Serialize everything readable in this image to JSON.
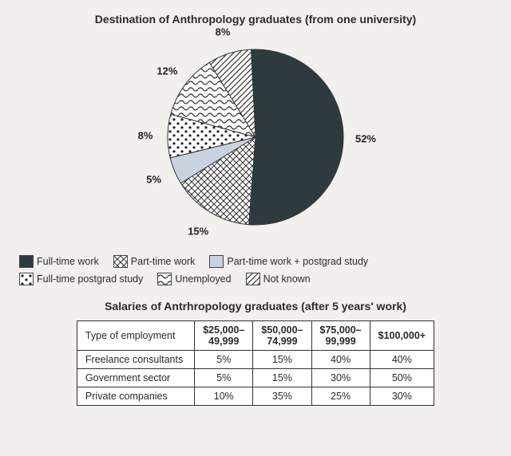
{
  "pie": {
    "title": "Destination of Anthropology graduates (from one university)",
    "type": "pie",
    "background_color": "#f2f0ec",
    "radius": 110,
    "stroke_color": "#333333",
    "slices": [
      {
        "label": "Full-time work",
        "value": 52,
        "display": "52%",
        "pattern": "solid",
        "fill": "#2f3a3f"
      },
      {
        "label": "Part-time work",
        "value": 15,
        "display": "15%",
        "pattern": "crosshatch",
        "fill": "#ffffff"
      },
      {
        "label": "Part-time work + postgrad study",
        "value": 5,
        "display": "5%",
        "pattern": "solid",
        "fill": "#c9d3e0"
      },
      {
        "label": "Full-time postgrad study",
        "value": 8,
        "display": "8%",
        "pattern": "dots",
        "fill": "#ffffff"
      },
      {
        "label": "Unemployed",
        "value": 12,
        "display": "12%",
        "pattern": "squiggle",
        "fill": "#ffffff"
      },
      {
        "label": "Not known",
        "value": 8,
        "display": "8%",
        "pattern": "diag",
        "fill": "#ffffff"
      }
    ],
    "legend_order": [
      0,
      1,
      2,
      3,
      4,
      5
    ],
    "label_fontsize": 13,
    "title_fontsize": 14
  },
  "table": {
    "title": "Salaries of Antrhropology graduates (after 5 years' work)",
    "type": "table",
    "row_header": "Type of employment",
    "columns": [
      "$25,000– 49,999",
      "$50,000– 74,999",
      "$75,000– 99,999",
      "$100,000+"
    ],
    "rows": [
      {
        "name": "Freelance consultants",
        "cells": [
          "5%",
          "15%",
          "40%",
          "40%"
        ]
      },
      {
        "name": "Government sector",
        "cells": [
          "5%",
          "15%",
          "30%",
          "50%"
        ]
      },
      {
        "name": "Private companies",
        "cells": [
          "10%",
          "35%",
          "25%",
          "30%"
        ]
      }
    ],
    "border_color": "#333333",
    "bg_color": "#ffffff",
    "fontsize": 12.5
  }
}
